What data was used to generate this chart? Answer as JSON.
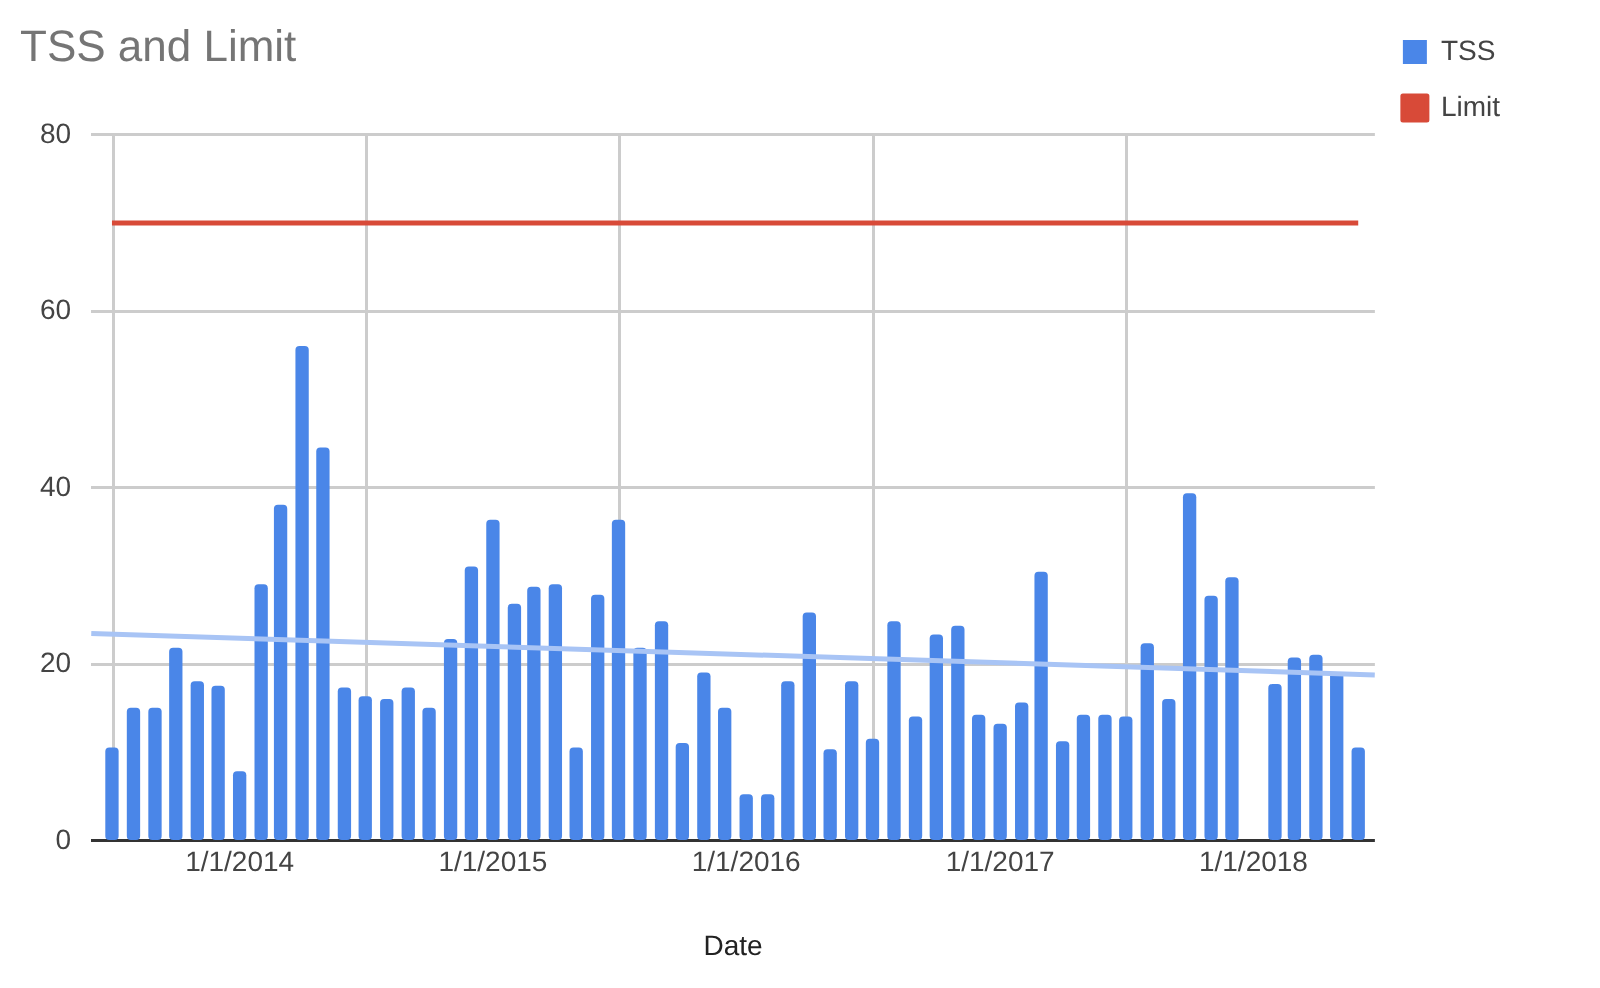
{
  "chart_data": {
    "type": "bar",
    "title": "TSS and Limit",
    "xlabel": "Date",
    "x": [
      "2013-07-01",
      "2013-08-01",
      "2013-09-01",
      "2013-10-01",
      "2013-11-01",
      "2013-12-01",
      "2014-01-01",
      "2014-02-01",
      "2014-03-01",
      "2014-04-01",
      "2014-05-01",
      "2014-06-01",
      "2014-07-01",
      "2014-08-01",
      "2014-09-01",
      "2014-10-01",
      "2014-11-01",
      "2014-12-01",
      "2015-01-01",
      "2015-02-01",
      "2015-03-01",
      "2015-04-01",
      "2015-05-01",
      "2015-06-01",
      "2015-07-01",
      "2015-08-01",
      "2015-09-01",
      "2015-10-01",
      "2015-11-01",
      "2015-12-01",
      "2016-01-01",
      "2016-02-01",
      "2016-03-01",
      "2016-04-01",
      "2016-05-01",
      "2016-06-01",
      "2016-07-01",
      "2016-08-01",
      "2016-09-01",
      "2016-10-01",
      "2016-11-01",
      "2016-12-01",
      "2017-01-01",
      "2017-02-01",
      "2017-03-01",
      "2017-04-01",
      "2017-05-01",
      "2017-06-01",
      "2017-07-01",
      "2017-08-01",
      "2017-09-01",
      "2017-10-01",
      "2017-11-01",
      "2017-12-01",
      "2018-01-01",
      "2018-02-01",
      "2018-03-01",
      "2018-04-01",
      "2018-05-01",
      "2018-06-01"
    ],
    "series": [
      {
        "name": "TSS",
        "color": "#4a86e8",
        "values": [
          10.5,
          15,
          15,
          21.8,
          18,
          17.5,
          7.8,
          29,
          38,
          56,
          44.5,
          17.3,
          16.3,
          16,
          17.3,
          15,
          22.8,
          31,
          36.3,
          26.8,
          28.7,
          29,
          10.5,
          27.8,
          36.3,
          21.8,
          24.8,
          11,
          19,
          15,
          5.2,
          5.2,
          18,
          25.8,
          10.3,
          18,
          11.5,
          24.8,
          14,
          23.3,
          24.3,
          14.2,
          13.2,
          15.6,
          30.4,
          11.2,
          14.2,
          14.2,
          14,
          22.3,
          16,
          39.3,
          27.7,
          29.8,
          null,
          17.7,
          20.7,
          21,
          19,
          10.5
        ]
      },
      {
        "name": "Limit",
        "type": "line",
        "color": "#d84a38",
        "x": [
          "2013-07-01",
          "2018-06-01"
        ],
        "values": [
          70,
          70
        ]
      },
      {
        "type": "line",
        "color": "#a8c4f5",
        "x": [
          "2013-06-01",
          "2018-06-25"
        ],
        "values": [
          23.5,
          18.8
        ]
      }
    ],
    "xlim": [
      "2013-06-01",
      "2018-06-25"
    ],
    "xticks": [
      {
        "value": "2014-01-01",
        "label": "1/1/2014"
      },
      {
        "value": "2015-01-01",
        "label": "1/1/2015"
      },
      {
        "value": "2016-01-01",
        "label": "1/1/2016"
      },
      {
        "value": "2017-01-01",
        "label": "1/1/2017"
      },
      {
        "value": "2018-01-01",
        "label": "1/1/2018"
      }
    ],
    "ylim": [
      0,
      80
    ],
    "yticks": [
      0,
      20,
      40,
      60,
      80
    ],
    "grid": true,
    "legend": "top right",
    "marker": "none"
  }
}
